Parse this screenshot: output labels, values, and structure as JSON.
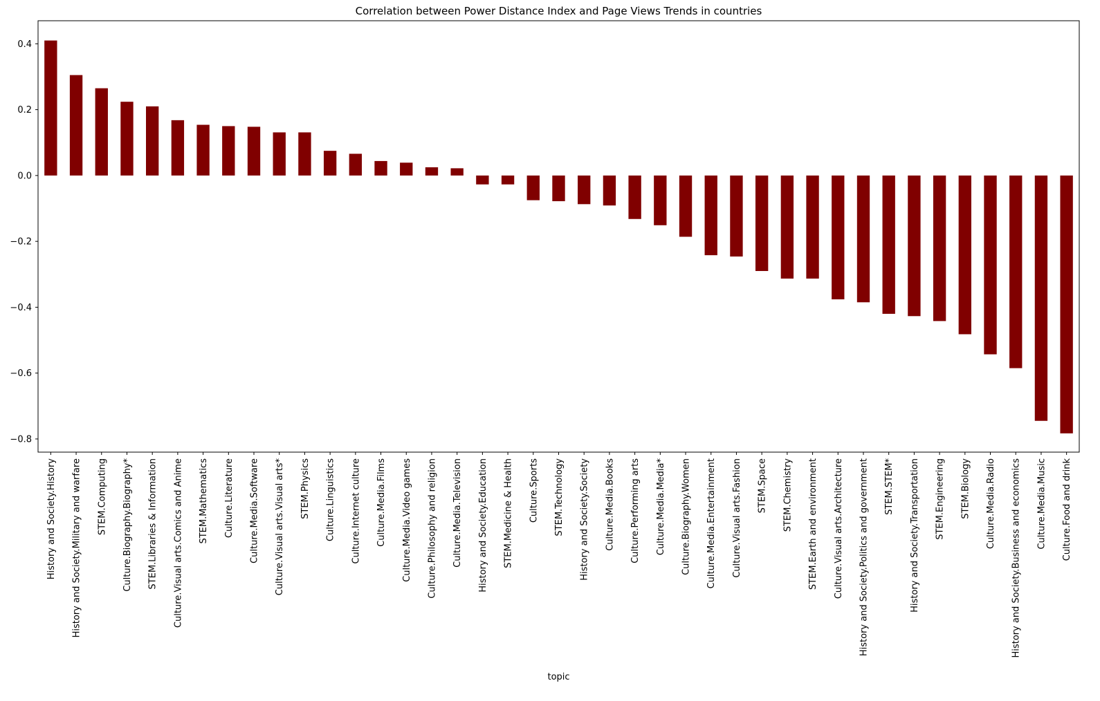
{
  "chart_data": {
    "type": "bar",
    "title": "Correlation between Power Distance Index and Page Views Trends in countries",
    "xlabel": "topic",
    "ylabel": "",
    "ylim": [
      -0.84,
      0.47
    ],
    "yticks": [
      0.4,
      0.2,
      0.0,
      -0.2,
      -0.4,
      -0.6,
      -0.8
    ],
    "ytick_labels": [
      "0.4",
      "0.2",
      "0.0",
      "−0.2",
      "−0.4",
      "−0.6",
      "−0.8"
    ],
    "grid": false,
    "legend": "none",
    "bar_color": "#800000",
    "categories": [
      "History and Society.History",
      "History and Society.Military and warfare",
      "STEM.Computing",
      "Culture.Biography.Biography*",
      "STEM.Libraries & Information",
      "Culture.Visual arts.Comics and Anime",
      "STEM.Mathematics",
      "Culture.Literature",
      "Culture.Media.Software",
      "Culture.Visual arts.Visual arts*",
      "STEM.Physics",
      "Culture.Linguistics",
      "Culture.Internet culture",
      "Culture.Media.Films",
      "Culture.Media.Video games",
      "Culture.Philosophy and religion",
      "Culture.Media.Television",
      "History and Society.Education",
      "STEM.Medicine & Health",
      "Culture.Sports",
      "STEM.Technology",
      "History and Society.Society",
      "Culture.Media.Books",
      "Culture.Performing arts",
      "Culture.Media.Media*",
      "Culture.Biography.Women",
      "Culture.Media.Entertainment",
      "Culture.Visual arts.Fashion",
      "STEM.Space",
      "STEM.Chemistry",
      "STEM.Earth and environment",
      "Culture.Visual arts.Architecture",
      "History and Society.Politics and government",
      "STEM.STEM*",
      "History and Society.Transportation",
      "STEM.Engineering",
      "STEM.Biology",
      "Culture.Media.Radio",
      "History and Society.Business and economics",
      "Culture.Media.Music",
      "Culture.Food and drink"
    ],
    "values": [
      0.41,
      0.305,
      0.265,
      0.224,
      0.21,
      0.168,
      0.154,
      0.15,
      0.148,
      0.131,
      0.131,
      0.075,
      0.066,
      0.044,
      0.039,
      0.025,
      0.022,
      -0.027,
      -0.027,
      -0.075,
      -0.078,
      -0.087,
      -0.091,
      -0.132,
      -0.151,
      -0.186,
      -0.242,
      -0.246,
      -0.29,
      -0.313,
      -0.313,
      -0.376,
      -0.385,
      -0.42,
      -0.427,
      -0.442,
      -0.482,
      -0.543,
      -0.585,
      -0.745,
      -0.783
    ]
  }
}
